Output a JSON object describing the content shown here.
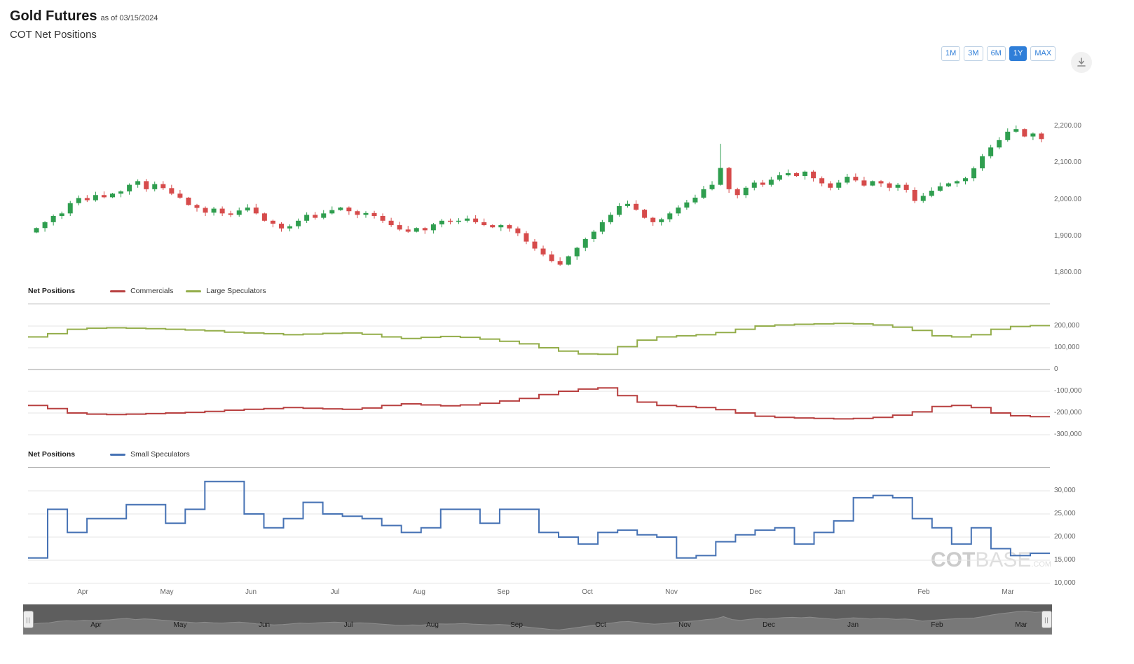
{
  "header": {
    "title": "Gold Futures",
    "as_of": "as of 03/15/2024",
    "subtitle": "COT Net Positions"
  },
  "range_selector": {
    "buttons": [
      {
        "label": "1M",
        "active": false
      },
      {
        "label": "3M",
        "active": false
      },
      {
        "label": "6M",
        "active": false
      },
      {
        "label": "1Y",
        "active": true
      },
      {
        "label": "MAX",
        "active": false
      }
    ]
  },
  "icons": {
    "download": "download-icon"
  },
  "watermark": {
    "part1": "COT",
    "part2": "BASE",
    "part3": ".COM"
  },
  "months": [
    "Apr",
    "May",
    "Jun",
    "Jul",
    "Aug",
    "Sep",
    "Oct",
    "Nov",
    "Dec",
    "Jan",
    "Feb",
    "Mar"
  ],
  "theme": {
    "accent_blue": "#2f7ed8",
    "candle_up": "#2f9e4f",
    "candle_down": "#d64b4b",
    "commercials": "#b84040",
    "large_speculators": "#93ad4a",
    "small_speculators": "#4672b4",
    "grid": "#e5e5e5",
    "zero_line": "#9e9e9e",
    "navigator_bg": "#5e5e5e",
    "navigator_area": "#787878"
  },
  "chart_data": [
    {
      "type": "candlestick",
      "title": "Gold Futures daily price",
      "x_range": "Apr 2023 - Mar 2024",
      "ylim": [
        1790,
        2230
      ],
      "ticks": [
        {
          "value": 2200,
          "label": "2,200.00"
        },
        {
          "value": 2100,
          "label": "2,100.00"
        },
        {
          "value": 2000,
          "label": "2,000.00"
        },
        {
          "value": 1900,
          "label": "1,900.00"
        },
        {
          "value": 1800,
          "label": "1,800.00"
        }
      ],
      "closes": [
        1922,
        1938,
        1955,
        1962,
        1990,
        2004,
        1998,
        2012,
        2006,
        2016,
        2022,
        2040,
        2050,
        2028,
        2042,
        2031,
        2016,
        2005,
        1985,
        1977,
        1964,
        1975,
        1962,
        1958,
        1970,
        1978,
        1962,
        1942,
        1934,
        1921,
        1927,
        1942,
        1958,
        1950,
        1962,
        1971,
        1978,
        1968,
        1958,
        1963,
        1955,
        1942,
        1930,
        1918,
        1912,
        1922,
        1916,
        1932,
        1942,
        1939,
        1942,
        1948,
        1938,
        1930,
        1924,
        1930,
        1921,
        1908,
        1885,
        1866,
        1850,
        1832,
        1822,
        1845,
        1868,
        1892,
        1912,
        1938,
        1958,
        1982,
        1988,
        1972,
        1950,
        1938,
        1946,
        1962,
        1978,
        1992,
        2005,
        2028,
        2040,
        2086,
        2028,
        2012,
        2032,
        2046,
        2040,
        2054,
        2066,
        2072,
        2064,
        2076,
        2058,
        2044,
        2032,
        2046,
        2062,
        2052,
        2038,
        2050,
        2044,
        2032,
        2040,
        2026,
        1996,
        2010,
        2024,
        2036,
        2044,
        2050,
        2058,
        2085,
        2118,
        2142,
        2162,
        2185,
        2192,
        2172,
        2180,
        2165
      ],
      "spike": {
        "index": 81,
        "high": 2152
      },
      "colors": {
        "up": "#2f9e4f",
        "down": "#d64b4b"
      }
    },
    {
      "type": "line",
      "step": true,
      "title": "Net Positions",
      "legend_position": "top",
      "ylim": [
        -320000,
        260000
      ],
      "ticks": [
        {
          "value": 200000,
          "label": "200,000"
        },
        {
          "value": 100000,
          "label": "100,000"
        },
        {
          "value": 0,
          "label": "0"
        },
        {
          "value": -100000,
          "label": "-100,000"
        },
        {
          "value": -200000,
          "label": "-200,000"
        },
        {
          "value": -300000,
          "label": "-300,000"
        }
      ],
      "series": [
        {
          "name": "Commercials",
          "color": "#b84040",
          "values": [
            -165000,
            -180000,
            -200000,
            -205000,
            -207000,
            -205000,
            -203000,
            -200000,
            -197000,
            -193000,
            -187000,
            -183000,
            -180000,
            -175000,
            -178000,
            -181000,
            -183000,
            -177000,
            -165000,
            -158000,
            -163000,
            -167000,
            -163000,
            -155000,
            -145000,
            -133000,
            -115000,
            -100000,
            -90000,
            -85000,
            -120000,
            -150000,
            -165000,
            -170000,
            -175000,
            -185000,
            -200000,
            -215000,
            -220000,
            -223000,
            -225000,
            -227000,
            -225000,
            -220000,
            -210000,
            -195000,
            -170000,
            -165000,
            -175000,
            -200000,
            -213000,
            -217000
          ]
        },
        {
          "name": "Large Speculators",
          "color": "#93ad4a",
          "values": [
            150000,
            165000,
            185000,
            190000,
            192000,
            190000,
            188000,
            185000,
            182000,
            178000,
            172000,
            168000,
            165000,
            160000,
            163000,
            166000,
            168000,
            162000,
            150000,
            143000,
            148000,
            152000,
            148000,
            140000,
            130000,
            118000,
            100000,
            85000,
            72000,
            70000,
            105000,
            135000,
            150000,
            155000,
            160000,
            170000,
            185000,
            200000,
            205000,
            208000,
            210000,
            212000,
            210000,
            205000,
            195000,
            180000,
            155000,
            150000,
            160000,
            185000,
            198000,
            202000
          ]
        }
      ]
    },
    {
      "type": "line",
      "step": true,
      "title": "Net Positions",
      "legend_position": "top",
      "ylim": [
        9000,
        34000
      ],
      "ticks": [
        {
          "value": 30000,
          "label": "30,000"
        },
        {
          "value": 25000,
          "label": "25,000"
        },
        {
          "value": 20000,
          "label": "20,000"
        },
        {
          "value": 15000,
          "label": "15,000"
        },
        {
          "value": 10000,
          "label": "10,000"
        }
      ],
      "series": [
        {
          "name": "Small Speculators",
          "color": "#4672b4",
          "values": [
            15500,
            26000,
            21000,
            24000,
            24000,
            27000,
            27000,
            23000,
            26000,
            32000,
            32000,
            25000,
            22000,
            24000,
            27500,
            25000,
            24500,
            24000,
            22500,
            21000,
            22000,
            26000,
            26000,
            23000,
            26000,
            26000,
            21000,
            20000,
            18500,
            21000,
            21500,
            20500,
            20000,
            15500,
            16000,
            19000,
            20500,
            21500,
            22000,
            18500,
            21000,
            23500,
            28500,
            29000,
            28500,
            24000,
            22000,
            18500,
            22000,
            17500,
            16000,
            16500
          ]
        }
      ]
    }
  ],
  "navigator": {
    "months": [
      "Apr",
      "May",
      "Jun",
      "Jul",
      "Aug",
      "Sep",
      "Oct",
      "Nov",
      "Dec",
      "Jan",
      "Feb",
      "Mar"
    ],
    "handle_glyph": "||"
  }
}
